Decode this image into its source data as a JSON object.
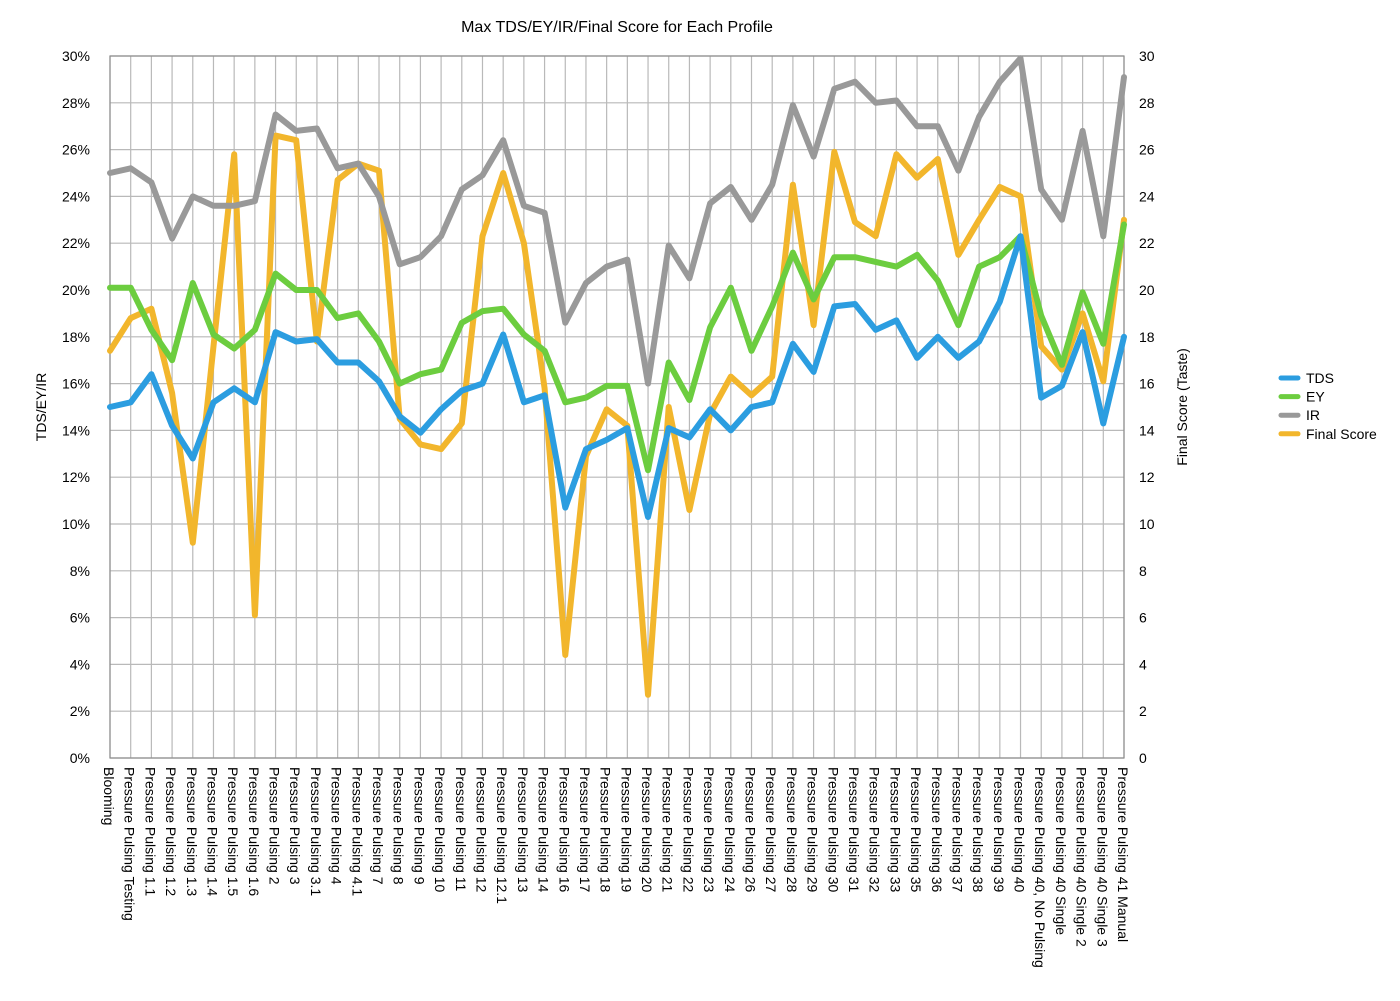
{
  "chart_data": {
    "type": "line",
    "title": "Max TDS/EY/IR/Final Score for Each Profile",
    "ylabel_left": "TDS/EY/IR",
    "ylabel_right": "Final Score (Taste)",
    "xlabel": "",
    "ylim_left": [
      0,
      30
    ],
    "ylim_right": [
      0,
      30
    ],
    "yticks_left": [
      "0%",
      "2%",
      "4%",
      "6%",
      "8%",
      "10%",
      "12%",
      "14%",
      "16%",
      "18%",
      "20%",
      "22%",
      "24%",
      "26%",
      "28%",
      "30%"
    ],
    "yticks_right": [
      "0",
      "2",
      "4",
      "6",
      "8",
      "10",
      "12",
      "14",
      "16",
      "18",
      "20",
      "22",
      "24",
      "26",
      "28",
      "30"
    ],
    "grid": true,
    "legend_position": "right",
    "categories": [
      "Blooming",
      "Pressure Pulsing Testing",
      "Pressure Pulsing 1.1",
      "Pressure Pulsing 1.2",
      "Pressure Pulsing 1.3",
      "Pressure Pulsing 1.4",
      "Pressure Pulsing 1.5",
      "Pressure Pulsing 1.6",
      "Pressure Pulsing 2",
      "Pressure Pulsing 3",
      "Pressure Pulsing 3.1",
      "Pressure Pulsing 4",
      "Pressure Pulsing 4.1",
      "Pressure Pulsing 7",
      "Pressure Pulsing 8",
      "Pressure Pulsing 9",
      "Pressure Pulsing 10",
      "Pressure Pulsing 11",
      "Pressure Pulsing 12",
      "Pressure Pulsing 12.1",
      "Pressure Pulsing 13",
      "Pressure Pulsing 14",
      "Pressure Pulsing 16",
      "Pressure Pulsing 17",
      "Pressure Pulsing 18",
      "Pressure Pulsing 19",
      "Pressure Pulsing 20",
      "Pressure Pulsing 21",
      "Pressure Pulsing 22",
      "Pressure Pulsing 23",
      "Pressure Pulsing 24",
      "Pressure Pulsing 26",
      "Pressure Pulsing 27",
      "Pressure Pulsing 28",
      "Pressure Pulsing 29",
      "Pressure Pulsing 30",
      "Pressure Pulsing 31",
      "Pressure Pulsing 32",
      "Pressure Pulsing 33",
      "Pressure Pulsing 35",
      "Pressure Pulsing 36",
      "Pressure Pulsing 37",
      "Pressure Pulsing 38",
      "Pressure Pulsing 39",
      "Pressure Pulsing 40",
      "Pressure Pulsing 40, No Pulsing",
      "Pressure Pulsing 40 Single",
      "Pressure Pulsing 40 Single 2",
      "Pressure Pulsing 40 Single 3",
      "Pressure Pulsing 41 Manual"
    ],
    "series": [
      {
        "name": "TDS",
        "axis": "left",
        "color": "#2b9de0",
        "values": [
          15.0,
          15.2,
          16.4,
          14.2,
          12.8,
          15.2,
          15.8,
          15.2,
          18.2,
          17.8,
          17.9,
          16.9,
          16.9,
          16.1,
          14.6,
          13.9,
          14.9,
          15.7,
          16.0,
          18.1,
          15.2,
          15.5,
          10.7,
          13.2,
          13.6,
          14.1,
          10.3,
          14.1,
          13.7,
          14.9,
          14.0,
          15.0,
          15.2,
          17.7,
          16.5,
          19.3,
          19.4,
          18.3,
          18.7,
          17.1,
          18.0,
          17.1,
          17.8,
          19.5,
          22.3,
          15.4,
          15.9,
          18.2,
          14.3,
          18.0
        ]
      },
      {
        "name": "EY",
        "axis": "left",
        "color": "#6ccd3f",
        "values": [
          20.1,
          20.1,
          18.3,
          17.0,
          20.3,
          18.1,
          17.5,
          18.3,
          20.7,
          20.0,
          20.0,
          18.8,
          19.0,
          17.8,
          16.0,
          16.4,
          16.6,
          18.6,
          19.1,
          19.2,
          18.1,
          17.4,
          15.2,
          15.4,
          15.9,
          15.9,
          12.3,
          16.9,
          15.3,
          18.4,
          20.1,
          17.4,
          19.3,
          21.6,
          19.6,
          21.4,
          21.4,
          21.2,
          21.0,
          21.5,
          20.4,
          18.5,
          21.0,
          21.4,
          22.3,
          18.9,
          16.8,
          19.9,
          17.7,
          22.8
        ]
      },
      {
        "name": "IR",
        "axis": "left",
        "color": "#999999",
        "values": [
          25.0,
          25.2,
          24.6,
          22.2,
          24.0,
          23.6,
          23.6,
          23.8,
          27.5,
          26.8,
          26.9,
          25.2,
          25.4,
          24.0,
          21.1,
          21.4,
          22.3,
          24.3,
          24.9,
          26.4,
          23.6,
          23.3,
          18.6,
          20.3,
          21.0,
          21.3,
          16.0,
          21.9,
          20.5,
          23.7,
          24.4,
          23.0,
          24.5,
          27.9,
          25.7,
          28.6,
          28.9,
          28.0,
          28.1,
          27.0,
          27.0,
          25.1,
          27.4,
          28.9,
          29.9,
          24.3,
          23.0,
          26.8,
          22.3,
          29.1
        ]
      },
      {
        "name": "Final Score",
        "axis": "right",
        "color": "#f2b62c",
        "values": [
          17.4,
          18.8,
          19.2,
          15.6,
          9.2,
          17.6,
          25.8,
          6.1,
          26.6,
          26.4,
          17.8,
          24.7,
          25.4,
          25.1,
          14.5,
          13.4,
          13.2,
          14.3,
          22.3,
          25.0,
          22.0,
          15.8,
          4.4,
          12.9,
          14.9,
          14.2,
          2.7,
          15.0,
          10.6,
          14.7,
          16.3,
          15.5,
          16.3,
          24.5,
          18.5,
          25.9,
          22.9,
          22.3,
          25.8,
          24.8,
          25.6,
          21.5,
          23.0,
          24.4,
          24.0,
          17.6,
          16.6,
          19.0,
          16.1,
          23.0
        ]
      }
    ]
  }
}
